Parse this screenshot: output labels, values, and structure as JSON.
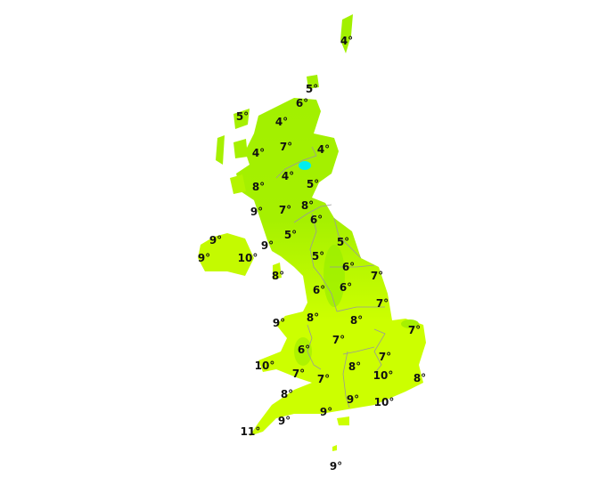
{
  "map": {
    "colors": {
      "land_cool": "#99ee11",
      "land_warm": "#ccff00",
      "cold_spot": "#00eeee",
      "boundary": "#999999",
      "sea": "#ffffff"
    },
    "temperatures": [
      "4°",
      "5°",
      "6°",
      "5°",
      "4°",
      "7°",
      "4°",
      "4°",
      "4°",
      "5°",
      "8°",
      "8°",
      "7°",
      "9°",
      "6°",
      "9°",
      "5°",
      "5°",
      "9°",
      "9°",
      "10°",
      "5°",
      "6°",
      "8°",
      "7°",
      "6°",
      "6°",
      "7°",
      "9°",
      "8°",
      "8°",
      "7°",
      "7°",
      "7°",
      "6°",
      "10°",
      "8°",
      "10°",
      "7°",
      "7°",
      "8°",
      "8°",
      "9°",
      "10°",
      "9°",
      "9°",
      "11°",
      "9°"
    ]
  }
}
